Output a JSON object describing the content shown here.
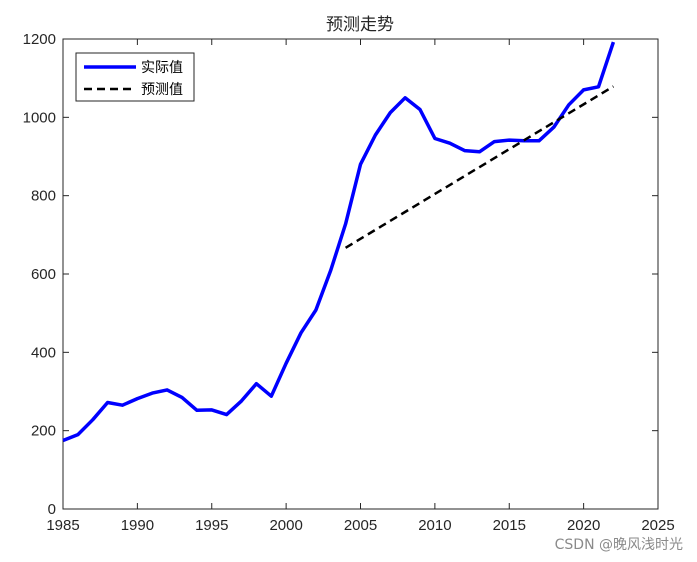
{
  "chart_data": {
    "type": "line",
    "title": "预测走势",
    "xlabel": "",
    "ylabel": "",
    "xlim": [
      1985,
      2025
    ],
    "ylim": [
      0,
      1200
    ],
    "xticks": [
      1985,
      1990,
      1995,
      2000,
      2005,
      2010,
      2015,
      2020,
      2025
    ],
    "yticks": [
      0,
      200,
      400,
      600,
      800,
      1000,
      1200
    ],
    "grid": false,
    "legend_placement": "top-left",
    "series": [
      {
        "name": "实际值",
        "color": "#0000ff",
        "style": "solid",
        "x": [
          1985,
          1986,
          1987,
          1988,
          1989,
          1990,
          1991,
          1992,
          1993,
          1994,
          1995,
          1996,
          1997,
          1998,
          1999,
          2000,
          2001,
          2002,
          2003,
          2004,
          2005,
          2006,
          2007,
          2008,
          2009,
          2010,
          2011,
          2012,
          2013,
          2014,
          2015,
          2016,
          2017,
          2018,
          2019,
          2020,
          2021,
          2022
        ],
        "y": [
          175,
          190,
          228,
          272,
          265,
          282,
          296,
          304,
          285,
          252,
          253,
          241,
          276,
          320,
          288,
          372,
          450,
          508,
          610,
          728,
          880,
          955,
          1012,
          1050,
          1020,
          946,
          934,
          915,
          912,
          938,
          942,
          940,
          940,
          975,
          1032,
          1070,
          1078,
          1192
        ]
      },
      {
        "name": "预测值",
        "color": "#000000",
        "style": "dashed",
        "x": [
          2004,
          2022
        ],
        "y": [
          667,
          1079
        ]
      }
    ]
  },
  "watermark": "CSDN @晚风浅时光"
}
